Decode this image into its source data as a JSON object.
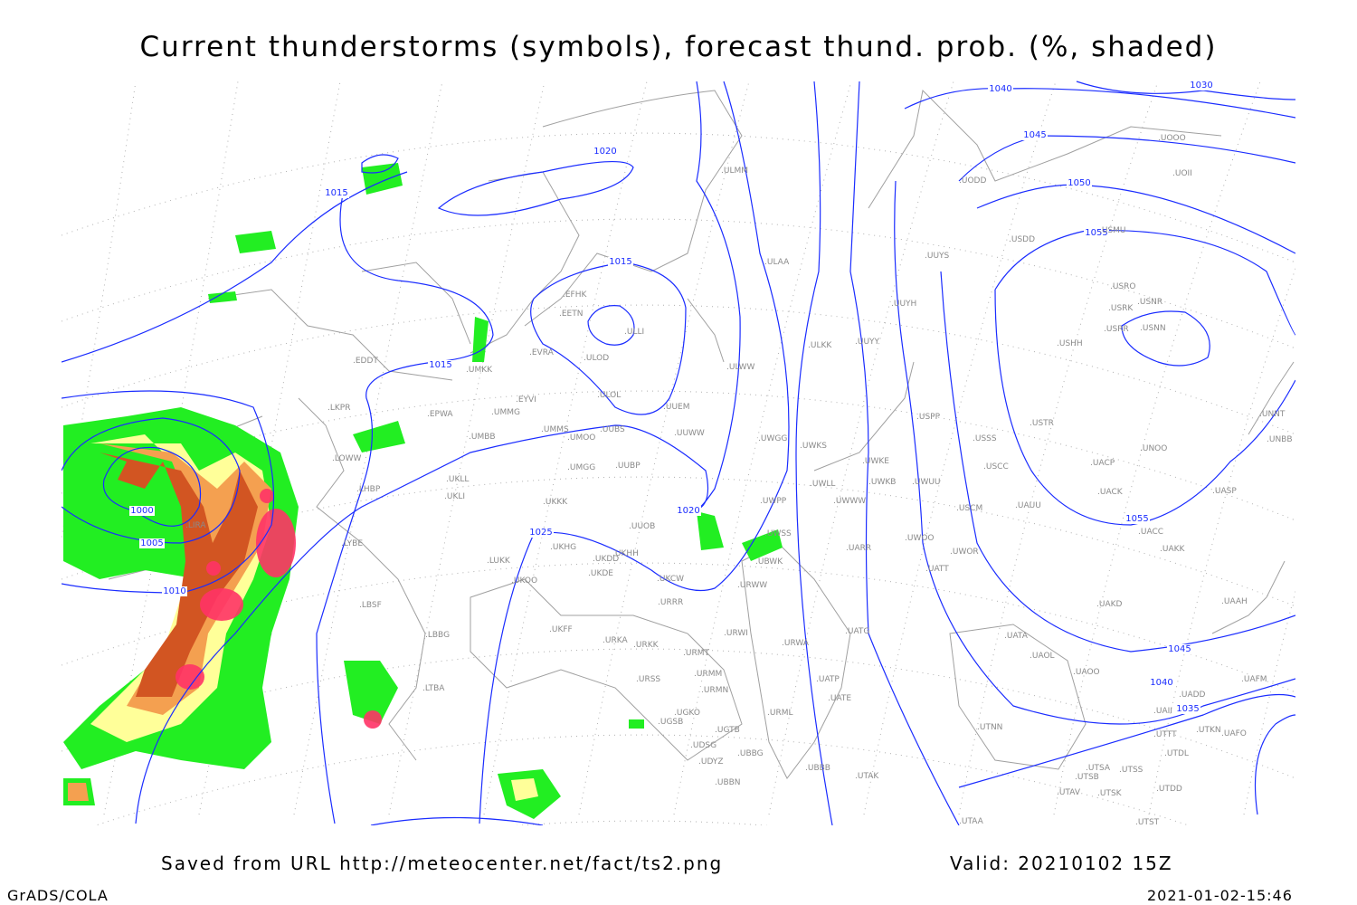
{
  "title": "Current thunderstorms (symbols), forecast thund. prob. (%, shaded)",
  "footer": {
    "saved_from": "Saved from URL http://meteocenter.net/fact/ts2.png",
    "valid": "Valid: 20210102 15Z",
    "software": "GrADS/COLA",
    "timestamp": "2021-01-02-15:46"
  },
  "colors": {
    "isobar": "#1a2cff",
    "coastline": "#a0a0a0",
    "prob_low": "#22ee22",
    "prob_mid": "#ffff99",
    "prob_high": "#f4a050",
    "prob_very_high": "#d25522",
    "thunderstorm_symbols": "#ff3366"
  },
  "isobar_labels": [
    "1000",
    "1005",
    "1010",
    "1015",
    "1015",
    "1015",
    "1020",
    "1020",
    "1025",
    "1030",
    "1040",
    "1040",
    "1045",
    "1045",
    "1050",
    "1055",
    "1055",
    "1035"
  ],
  "stations": [
    "EDDT",
    "LKPR",
    "EPWA",
    "LOWW",
    "LHBP",
    "LYBE",
    "LBSF",
    "LBBG",
    "LTBA",
    "LIRA",
    "UMKK",
    "EVRA",
    "EFHK",
    "EETN",
    "ULLI",
    "ULOD",
    "ULOL",
    "UUEM",
    "UUWW",
    "EYVI",
    "UMMG",
    "UMMS",
    "UMOO",
    "UUBS",
    "UMBB",
    "UMGG",
    "UUBP",
    "UKLL",
    "UKLI",
    "UKKK",
    "UUOB",
    "UKHH",
    "UKDD",
    "UKHG",
    "UKDE",
    "LUKK",
    "UKOO",
    "UKCW",
    "URRR",
    "UKFF",
    "URKA",
    "URKK",
    "URMT",
    "URSS",
    "URMM",
    "URMN",
    "UGKO",
    "UGSB",
    "UGTB",
    "UDSG",
    "UBBG",
    "UDYZ",
    "UBBN",
    "UBBB",
    "UTAK",
    "URWI",
    "URWA",
    "UATG",
    "UATP",
    "UATE",
    "URML",
    "UTNN",
    "UATA",
    "UAOL",
    "UAOO",
    "UADD",
    "UAII",
    "UAFM",
    "UTTT",
    "UTKN",
    "UAFO",
    "UTDL",
    "UTSA",
    "UTSS",
    "UTSB",
    "UTDD",
    "UTAV",
    "UTSK",
    "UTST",
    "UTAA",
    "UAKD",
    "UAAH",
    "UAKK",
    "UACC",
    "UASP",
    "UACK",
    "UNOO",
    "UACP",
    "UNBB",
    "UNNT",
    "USTR",
    "USSS",
    "USCC",
    "USCM",
    "UAUU",
    "UWOO",
    "UWOR",
    "UATT",
    "UARR",
    "UWUU",
    "UWKB",
    "UWKE",
    "UWLL",
    "UWWW",
    "UWPP",
    "UWSS",
    "URWW",
    "UBWK",
    "UWGG",
    "UWKS",
    "USPP",
    "UUYY",
    "ULKK",
    "UUYH",
    "UUYS",
    "ULAA",
    "ULWW",
    "ULMM",
    "USDD",
    "USMU",
    "USRO",
    "USRK",
    "USNR",
    "USRR",
    "USNN",
    "USHH",
    "UODD",
    "UOOO",
    "UOII"
  ]
}
